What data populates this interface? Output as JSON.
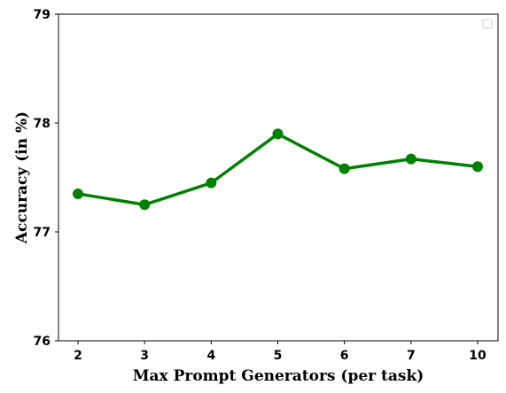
{
  "chart_data": {
    "type": "line",
    "title": "",
    "xlabel": "Max Prompt Generators (per task)",
    "ylabel": "Accuracy (in %)",
    "categories": [
      "2",
      "3",
      "4",
      "5",
      "6",
      "7",
      "10"
    ],
    "series": [
      {
        "values": [
          77.35,
          77.25,
          77.45,
          77.9,
          77.58,
          77.67,
          77.6
        ],
        "color": "#008000"
      }
    ],
    "ylim": [
      76,
      79
    ],
    "yticks": [
      "76",
      "77",
      "78",
      "79"
    ],
    "grid": false,
    "legend": "top-right (empty)",
    "marker": "circle"
  }
}
